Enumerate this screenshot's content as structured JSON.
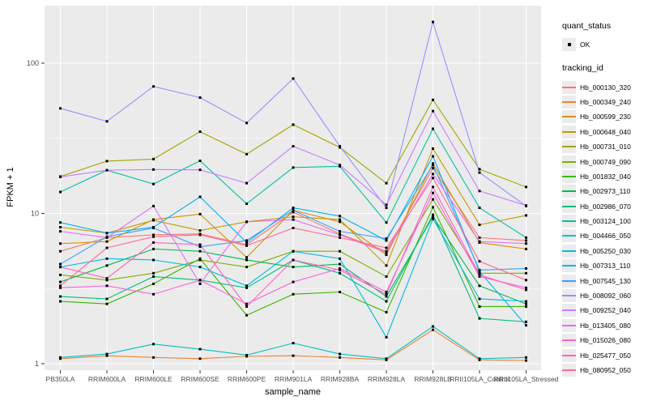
{
  "chart_data": {
    "type": "line",
    "title": "",
    "xlabel": "sample_name",
    "ylabel": "FPKM + 1",
    "y_scale": "log10",
    "y_ticks": [
      1,
      10,
      100
    ],
    "y_tick_labels": [
      "1",
      "10",
      "100"
    ],
    "y_minor_ticks": [
      3.162,
      31.62
    ],
    "ylim": [
      0.9,
      230
    ],
    "grid": true,
    "legend_position": "right",
    "panel_bg": "#EBEBEB",
    "gridline_color": "#FFFFFF",
    "axis_text_color": "#4D4D4D",
    "point_color": "#000000",
    "point_shape": "square",
    "categories": [
      "PB350LA",
      "RRIM600LA",
      "RRIM600LE",
      "RRIM600SE",
      "RRIM600PE",
      "RRIM901LA",
      "RRIM928BA",
      "RRIM928LA",
      "RRIM928LB",
      "RRII105LA_Control",
      "RRII105LA_Stressed"
    ],
    "legend": {
      "quant_status_title": "quant_status",
      "quant_status_items": [
        {
          "label": "OK",
          "marker": "square",
          "color": "#000000"
        }
      ],
      "tracking_title": "tracking_id"
    },
    "series": [
      {
        "id": "Hb_000130_320",
        "color": "#F8766D",
        "values": [
          5.6,
          6.9,
          7.2,
          7.3,
          6.2,
          10.2,
          7.3,
          5.6,
          20,
          6.9,
          6.6
        ]
      },
      {
        "id": "Hb_000349_240",
        "color": "#EA8331",
        "values": [
          1.08,
          1.13,
          1.1,
          1.08,
          1.12,
          1.13,
          1.1,
          1.06,
          1.68,
          1.06,
          1.05
        ]
      },
      {
        "id": "Hb_000599_230",
        "color": "#D89000",
        "values": [
          6.3,
          6.5,
          9.1,
          9.9,
          5.1,
          10.5,
          8.8,
          5.3,
          21.5,
          6.4,
          5.8
        ]
      },
      {
        "id": "Hb_000648_040",
        "color": "#C09B00",
        "values": [
          8.1,
          7.4,
          9.0,
          7.7,
          8.8,
          9.5,
          9.1,
          4.5,
          27,
          8.4,
          9.7
        ]
      },
      {
        "id": "Hb_000731_010",
        "color": "#A3A500",
        "values": [
          17.6,
          22.3,
          23,
          35,
          24.8,
          39,
          27.5,
          15.9,
          57,
          19.7,
          15
        ]
      },
      {
        "id": "Hb_000749_090",
        "color": "#7CAE00",
        "values": [
          3.9,
          3.6,
          4.0,
          4.9,
          4.4,
          5.6,
          5.6,
          3.8,
          12.4,
          4.0,
          4.0
        ]
      },
      {
        "id": "Hb_001832_040",
        "color": "#39B600",
        "values": [
          2.6,
          2.5,
          3.4,
          5.0,
          2.1,
          2.9,
          3.0,
          2.2,
          11,
          2.4,
          2.4
        ]
      },
      {
        "id": "Hb_002973_110",
        "color": "#00BB4E",
        "values": [
          3.5,
          4.5,
          5.8,
          5.6,
          4.9,
          4.4,
          4.6,
          2.8,
          9.5,
          3.3,
          2.5
        ]
      },
      {
        "id": "Hb_002986_070",
        "color": "#00BF7D",
        "values": [
          2.8,
          2.7,
          3.8,
          3.6,
          3.2,
          4.9,
          4.0,
          2.6,
          9.8,
          2.0,
          1.9
        ]
      },
      {
        "id": "Hb_003124_100",
        "color": "#00C1A3",
        "values": [
          13.9,
          19.4,
          15.7,
          22.4,
          11.6,
          20.2,
          20.6,
          8.7,
          36.6,
          10.9,
          6.9
        ]
      },
      {
        "id": "Hb_004466_050",
        "color": "#00BFC4",
        "values": [
          1.1,
          1.16,
          1.35,
          1.25,
          1.14,
          1.37,
          1.16,
          1.08,
          1.77,
          1.08,
          1.1
        ]
      },
      {
        "id": "Hb_005250_030",
        "color": "#00BAE0",
        "values": [
          4.4,
          5.0,
          4.9,
          4.4,
          3.3,
          5.6,
          5.0,
          1.5,
          9.2,
          2.7,
          2.6
        ]
      },
      {
        "id": "Hb_007313_110",
        "color": "#00B0F6",
        "values": [
          8.7,
          7.4,
          8.1,
          12.9,
          6.4,
          10.9,
          9.6,
          6.6,
          24,
          4.1,
          1.8
        ]
      },
      {
        "id": "Hb_007545_130",
        "color": "#35A2FF",
        "values": [
          4.6,
          7.0,
          8.0,
          6.0,
          6.6,
          10.5,
          7.6,
          6.8,
          21,
          4.2,
          4.3
        ]
      },
      {
        "id": "Hb_008092_060",
        "color": "#9590FF",
        "values": [
          50,
          41,
          70,
          59,
          40,
          79,
          28,
          10.9,
          188,
          18.7,
          11.2
        ]
      },
      {
        "id": "Hb_009252_040",
        "color": "#C77CFF",
        "values": [
          17.5,
          19.4,
          19.6,
          19.5,
          15.9,
          28,
          21,
          11.4,
          48,
          14.1,
          11.3
        ]
      },
      {
        "id": "Hb_013405_080",
        "color": "#E76BF3",
        "values": [
          7.6,
          6.9,
          11.2,
          3.4,
          8.8,
          9.1,
          7.2,
          5.5,
          18.3,
          6.5,
          6.3
        ]
      },
      {
        "id": "Hb_015026_080",
        "color": "#FA62DB",
        "values": [
          3.2,
          3.3,
          2.9,
          3.6,
          2.5,
          3.5,
          4.3,
          3.0,
          13.7,
          3.8,
          3.2
        ]
      },
      {
        "id": "Hb_025477_050",
        "color": "#FF62BC",
        "values": [
          4.4,
          3.7,
          6.4,
          6.2,
          2.4,
          4.9,
          4.2,
          2.9,
          15,
          3.9,
          3.1
        ]
      },
      {
        "id": "Hb_080952_050",
        "color": "#FF6A98",
        "values": [
          3.3,
          5.9,
          7.0,
          7.2,
          6.1,
          8.0,
          6.9,
          5.9,
          17.2,
          4.8,
          3.6
        ]
      }
    ]
  }
}
